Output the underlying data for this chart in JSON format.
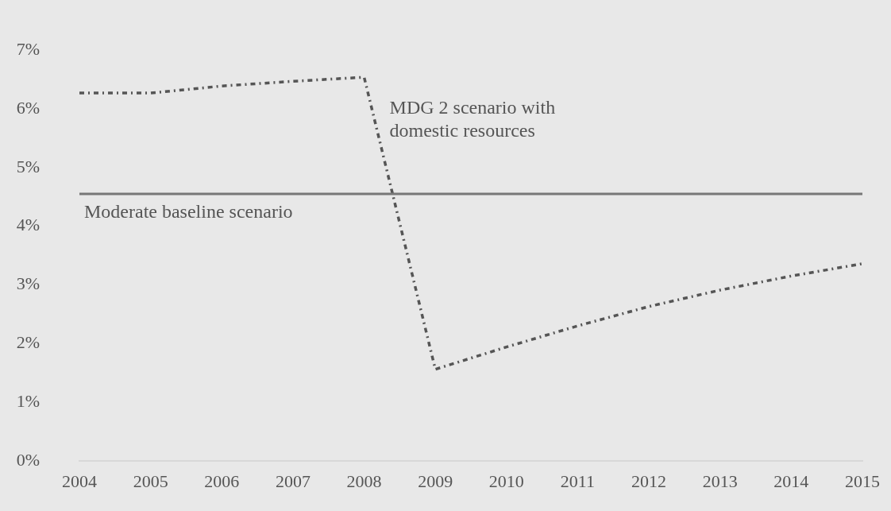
{
  "chart_data": {
    "type": "line",
    "categories": [
      "2004",
      "2005",
      "2006",
      "2007",
      "2008",
      "2009",
      "2010",
      "2011",
      "2012",
      "2013",
      "2014",
      "2015"
    ],
    "series": [
      {
        "name": "MDG 2 scenario with domestic resources",
        "color": "#555555",
        "values": [
          6.27,
          6.27,
          6.39,
          6.47,
          6.54,
          1.56,
          1.94,
          2.3,
          2.63,
          2.91,
          3.15,
          3.36
        ]
      }
    ],
    "ref_lines": [
      {
        "axis": "y",
        "value": 4.55,
        "label": "Moderate baseline scenario",
        "color": "#777777",
        "line_style": "solid"
      }
    ],
    "ylim": [
      0,
      7
    ],
    "yticks": [
      {
        "value": 0,
        "label": "0%"
      },
      {
        "value": 1,
        "label": "1%"
      },
      {
        "value": 2,
        "label": "2%"
      },
      {
        "value": 3,
        "label": "3%"
      },
      {
        "value": 4,
        "label": "4%"
      },
      {
        "value": 5,
        "label": "5%"
      },
      {
        "value": 6,
        "label": "6%"
      },
      {
        "value": 7,
        "label": "7%"
      }
    ],
    "grid": false,
    "legend": false,
    "marker": "none",
    "line_style": "dotted"
  }
}
